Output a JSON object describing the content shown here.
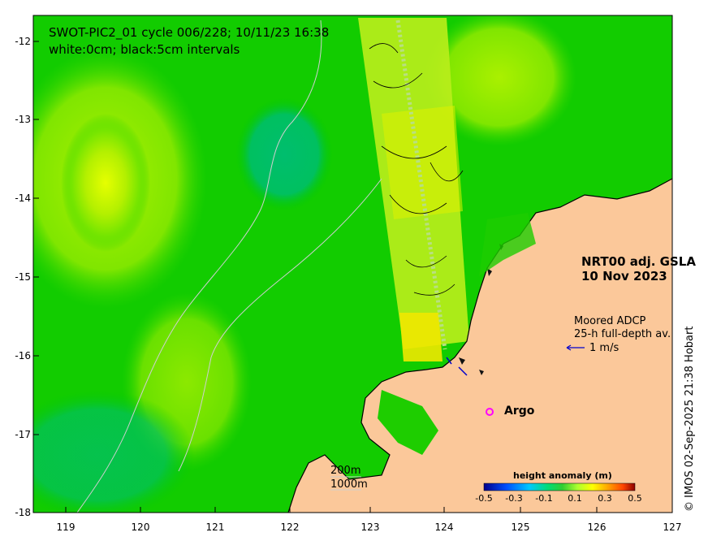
{
  "title": {
    "line1": "SWOT-PIC2_01 cycle 006/228; 10/11/23 16:38",
    "line2": "white:0cm; black:5cm intervals"
  },
  "product": {
    "line1": "NRT00 adj. GSLA",
    "line2": "10 Nov 2023"
  },
  "adcp": {
    "line1": "Moored ADCP",
    "line2": "25-h full-depth av.",
    "speed_label": "1 m/s"
  },
  "argo": {
    "label": "Argo",
    "marker": "o",
    "marker_color": "#ff00ff"
  },
  "isobaths": {
    "label1": "200m",
    "label2": "1000m"
  },
  "colorbar": {
    "title": "height anomaly (m)",
    "ticks": [
      "-0.5",
      "-0.3",
      "-0.1",
      "0.1",
      "0.3",
      "0.5"
    ],
    "colors": [
      "#00008b",
      "#0050ff",
      "#00c8ff",
      "#00dc78",
      "#32cd32",
      "#adff2f",
      "#ffff00",
      "#ffa500",
      "#ff4500",
      "#8b0000"
    ]
  },
  "credit": "© IMOS 02-Sep-2025 21:38 Hobart",
  "axes": {
    "xticks": [
      "119",
      "120",
      "121",
      "122",
      "123",
      "124",
      "125",
      "126",
      "127"
    ],
    "yticks": [
      "-12",
      "-13",
      "-14",
      "-15",
      "-16",
      "-17",
      "-18"
    ]
  },
  "colors": {
    "land": "#fbc89a",
    "ocean_base": "#00c800",
    "frame": "#000000"
  }
}
